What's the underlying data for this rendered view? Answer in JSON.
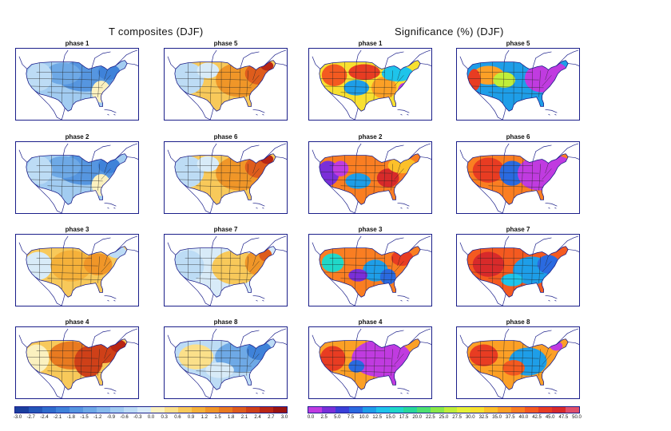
{
  "left_title": "T composites (DJF)",
  "right_title": "Significance (%) (DJF)",
  "t_panels": [
    {
      "label": "phase 1",
      "mode": "cold"
    },
    {
      "label": "phase 5",
      "mode": "warmeast"
    },
    {
      "label": "phase 2",
      "mode": "cold"
    },
    {
      "label": "phase 6",
      "mode": "warmeast"
    },
    {
      "label": "phase 3",
      "mode": "warmmix"
    },
    {
      "label": "phase 7",
      "mode": "warmeastlight"
    },
    {
      "label": "phase 4",
      "mode": "warmstrong"
    },
    {
      "label": "phase 8",
      "mode": "coldeast"
    }
  ],
  "s_panels": [
    {
      "label": "phase 1",
      "mode": "sig1"
    },
    {
      "label": "phase 5",
      "mode": "sig5"
    },
    {
      "label": "phase 2",
      "mode": "sig2"
    },
    {
      "label": "phase 6",
      "mode": "sig6"
    },
    {
      "label": "phase 3",
      "mode": "sig3"
    },
    {
      "label": "phase 7",
      "mode": "sig7"
    },
    {
      "label": "phase 4",
      "mode": "sig4"
    },
    {
      "label": "phase 8",
      "mode": "sig8"
    }
  ],
  "t_colorbar": {
    "ticks": [
      "-3.0",
      "-2.7",
      "-2.4",
      "-2.1",
      "-1.8",
      "-1.5",
      "-1.2",
      "-0.9",
      "-0.6",
      "-0.3",
      "0.0",
      "0.3",
      "0.6",
      "0.9",
      "1.2",
      "1.5",
      "1.8",
      "2.1",
      "2.4",
      "2.7",
      "3.0"
    ],
    "colors": [
      "#1a3f9e",
      "#2456b8",
      "#2f6ccc",
      "#3f82d9",
      "#5696e0",
      "#6ea9e6",
      "#88bbec",
      "#a2ccf1",
      "#bddcf5",
      "#d8ebf8",
      "#fbf1bf",
      "#fbe08a",
      "#f8c95a",
      "#f5b13a",
      "#f09628",
      "#e97a20",
      "#de5c1c",
      "#cf4018",
      "#b92614",
      "#9a1410"
    ]
  },
  "s_colorbar": {
    "ticks": [
      "0.0",
      "2.5",
      "5.0",
      "7.5",
      "10.0",
      "12.5",
      "15.0",
      "17.5",
      "20.0",
      "22.5",
      "25.0",
      "27.5",
      "30.0",
      "32.5",
      "35.0",
      "37.5",
      "40.0",
      "42.5",
      "45.0",
      "47.5",
      "50.0"
    ],
    "colors": [
      "#c03be0",
      "#7a2fd8",
      "#3a3fd8",
      "#2a6ae0",
      "#1e9ee8",
      "#1ec4ea",
      "#20d8c8",
      "#28d89a",
      "#4ee070",
      "#8ae84a",
      "#c0ee3a",
      "#e6f036",
      "#f8e030",
      "#fcc02a",
      "#fca026",
      "#fa7e22",
      "#f45a20",
      "#e83c22",
      "#d82a2a",
      "#e0506a"
    ]
  },
  "colors": {
    "frame": "#1b1f8a",
    "land_outline": "#1b1f8a"
  }
}
